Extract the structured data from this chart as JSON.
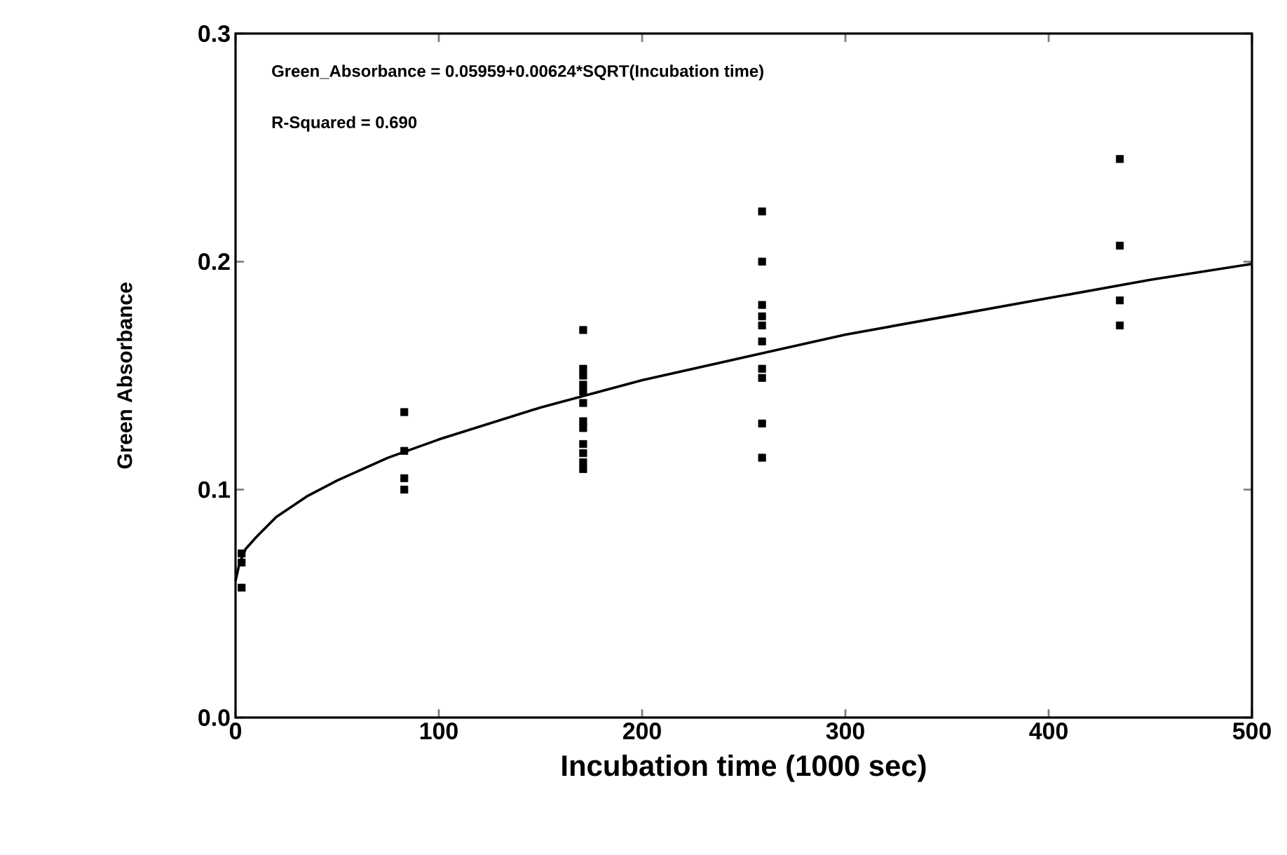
{
  "chart_data": {
    "type": "scatter",
    "xlabel": "Incubation time (1000 sec)",
    "ylabel": "Green Absorbance",
    "annotations": [
      "Green_Absorbance = 0.05959+0.00624*SQRT(Incubation time)",
      "R-Squared = 0.690"
    ],
    "xlim": [
      0,
      500
    ],
    "ylim": [
      0,
      0.3
    ],
    "xticks": [
      0,
      100,
      200,
      300,
      400,
      500
    ],
    "yticks": [
      {
        "value": 0,
        "label": "0.0"
      },
      {
        "value": 0.1,
        "label": "0.1"
      },
      {
        "value": 0.2,
        "label": "0.2"
      },
      {
        "value": 0.3,
        "label": "0.3"
      }
    ],
    "grid": false,
    "series": [
      {
        "color": "#000000",
        "marker": "square",
        "x": [
          3,
          3,
          3,
          83,
          83,
          83,
          83,
          171,
          171,
          171,
          171,
          171,
          171,
          171,
          171,
          171,
          171,
          171,
          171,
          259,
          259,
          259,
          259,
          259,
          259,
          259,
          259,
          259,
          259,
          435,
          435,
          435,
          435
        ],
        "values": [
          0.072,
          0.068,
          0.057,
          0.134,
          0.117,
          0.105,
          0.1,
          0.17,
          0.153,
          0.15,
          0.146,
          0.143,
          0.138,
          0.13,
          0.127,
          0.12,
          0.116,
          0.112,
          0.109,
          0.222,
          0.2,
          0.181,
          0.176,
          0.172,
          0.165,
          0.153,
          0.149,
          0.129,
          0.114,
          0.245,
          0.207,
          0.183,
          0.172
        ]
      },
      {
        "type": "line",
        "color": "#000000",
        "marker": "none",
        "line_style": "solid",
        "x": [
          0,
          2,
          5,
          10,
          20,
          35,
          50,
          75,
          100,
          150,
          200,
          250,
          300,
          350,
          400,
          450,
          500
        ],
        "values": [
          0.06,
          0.068,
          0.074,
          0.079,
          0.088,
          0.097,
          0.104,
          0.114,
          0.122,
          0.136,
          0.148,
          0.158,
          0.168,
          0.176,
          0.184,
          0.192,
          0.199
        ]
      }
    ]
  }
}
